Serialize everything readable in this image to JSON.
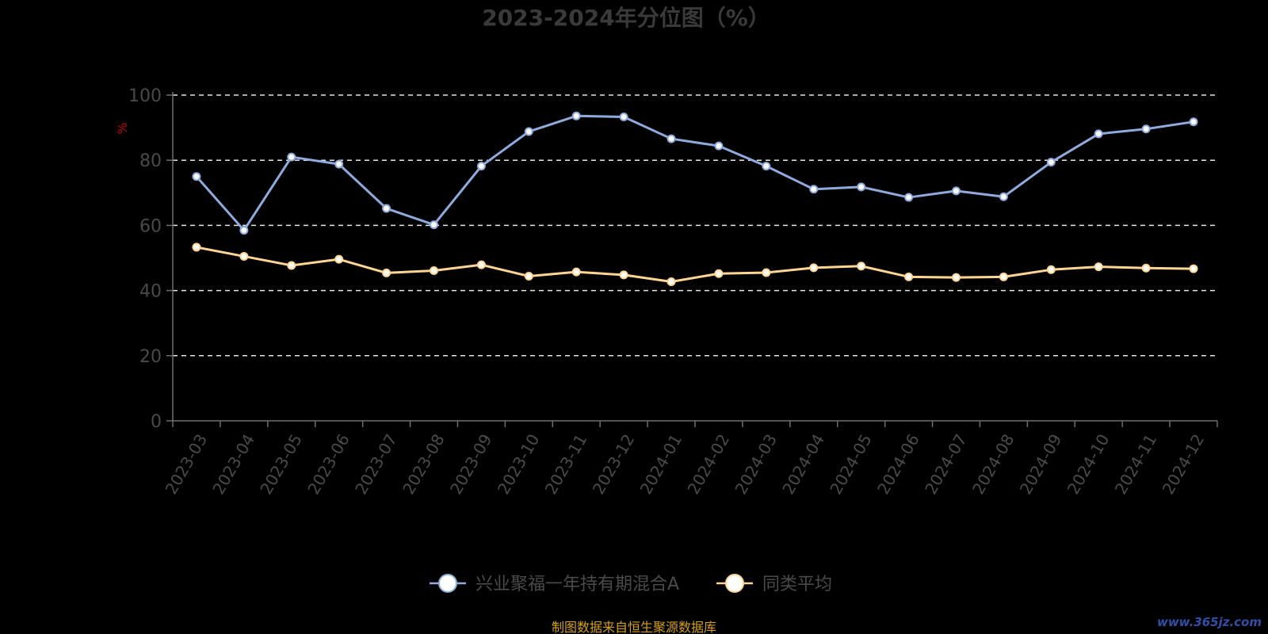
{
  "chart_data": {
    "type": "line",
    "title": "2023-2024年分位图（%）",
    "ylabel": "%",
    "ylim": [
      0,
      100
    ],
    "y_ticks": [
      0,
      20,
      40,
      60,
      80,
      100
    ],
    "grid": true,
    "legend_position": "bottom",
    "categories": [
      "2023-03",
      "2023-04",
      "2023-05",
      "2023-06",
      "2023-07",
      "2023-08",
      "2023-09",
      "2023-10",
      "2023-11",
      "2023-12",
      "2024-01",
      "2024-02",
      "2024-03",
      "2024-04",
      "2024-05",
      "2024-06",
      "2024-07",
      "2024-08",
      "2024-09",
      "2024-10",
      "2024-11",
      "2024-12"
    ],
    "series": [
      {
        "name": "兴业聚福一年持有期混合A",
        "color": "#8faadc",
        "values": [
          75,
          58.5,
          81,
          78.8,
          65.2,
          60.2,
          78.2,
          88.8,
          93.6,
          93.3,
          86.6,
          84.4,
          78.2,
          71.1,
          71.8,
          68.6,
          70.6,
          68.8,
          79.4,
          88.1,
          89.6,
          91.8
        ]
      },
      {
        "name": "同类平均",
        "color": "#ffd591",
        "values": [
          53.3,
          50.5,
          47.7,
          49.6,
          45.4,
          46.1,
          47.9,
          44.4,
          45.7,
          44.8,
          42.7,
          45.2,
          45.5,
          47.0,
          47.5,
          44.2,
          44.0,
          44.2,
          46.4,
          47.3,
          46.9,
          46.7
        ]
      }
    ]
  },
  "footer": {
    "source": "制图数据来自恒生聚源数据库",
    "watermark": "www.365jz.com"
  }
}
